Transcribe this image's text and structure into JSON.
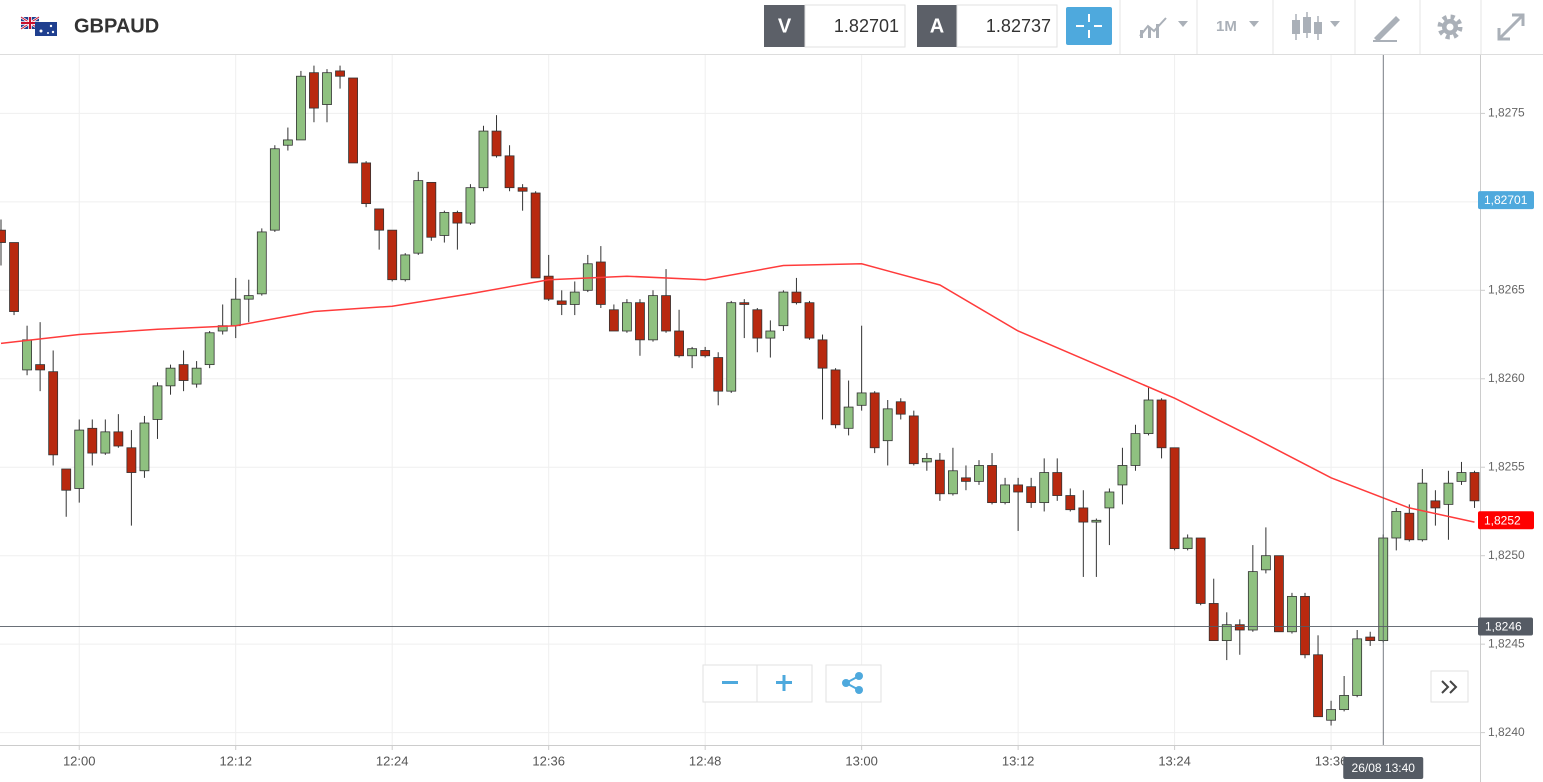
{
  "header": {
    "symbol": "GBPAUD",
    "sell_label": "V",
    "sell_price": "1.82701",
    "buy_label": "A",
    "buy_price": "1.82737",
    "timeframe": "1M"
  },
  "chart_data": {
    "type": "candlestick",
    "x": [
      "11:54",
      "11:55",
      "11:56",
      "11:57",
      "11:58",
      "11:59",
      "12:00",
      "12:01",
      "12:02",
      "12:03",
      "12:04",
      "12:05",
      "12:06",
      "12:07",
      "12:08",
      "12:09",
      "12:10",
      "12:11",
      "12:12",
      "12:13",
      "12:14",
      "12:15",
      "12:16",
      "12:17",
      "12:18",
      "12:19",
      "12:20",
      "12:21",
      "12:22",
      "12:23",
      "12:24",
      "12:25",
      "12:26",
      "12:27",
      "12:28",
      "12:29",
      "12:30",
      "12:31",
      "12:32",
      "12:33",
      "12:34",
      "12:35",
      "12:36",
      "12:37",
      "12:38",
      "12:39",
      "12:40",
      "12:41",
      "12:42",
      "12:43",
      "12:44",
      "12:45",
      "12:46",
      "12:47",
      "12:48",
      "12:49",
      "12:50",
      "12:51",
      "12:52",
      "12:53",
      "12:54",
      "12:55",
      "12:56",
      "12:57",
      "12:58",
      "12:59",
      "13:00",
      "13:01",
      "13:02",
      "13:03",
      "13:04",
      "13:05",
      "13:06",
      "13:07",
      "13:08",
      "13:09",
      "13:10",
      "13:11",
      "13:12",
      "13:13",
      "13:14",
      "13:15",
      "13:16",
      "13:17",
      "13:18",
      "13:19",
      "13:20",
      "13:21",
      "13:22",
      "13:23",
      "13:24",
      "13:25",
      "13:26",
      "13:27",
      "13:28",
      "13:29",
      "13:30",
      "13:31",
      "13:32",
      "13:33",
      "13:34",
      "13:35",
      "13:36",
      "13:37",
      "13:38",
      "13:39",
      "13:40",
      "13:41",
      "13:42",
      "13:43",
      "13:44",
      "13:45",
      "13:46",
      "13:47"
    ],
    "open": [
      1.82684,
      1.82677,
      1.82605,
      1.82608,
      1.82604,
      1.82549,
      1.82538,
      1.82572,
      1.82558,
      1.8257,
      1.82561,
      1.82548,
      1.82577,
      1.82596,
      1.82608,
      1.82597,
      1.82608,
      1.82627,
      1.8263,
      1.82645,
      1.82648,
      1.82684,
      1.82732,
      1.82735,
      1.82773,
      1.82755,
      1.82774,
      1.8277,
      1.82722,
      1.82696,
      1.82684,
      1.82656,
      1.82671,
      1.82711,
      1.82681,
      1.82694,
      1.82688,
      1.82708,
      1.8274,
      1.82726,
      1.82708,
      1.82705,
      1.82658,
      1.82644,
      1.82642,
      1.8265,
      1.82666,
      1.82639,
      1.82627,
      1.82643,
      1.82622,
      1.82647,
      1.82627,
      1.82613,
      1.82616,
      1.82612,
      1.82593,
      1.82643,
      1.82639,
      1.82623,
      1.8263,
      1.82649,
      1.82643,
      1.82622,
      1.82605,
      1.82572,
      1.82585,
      1.82592,
      1.82565,
      1.82587,
      1.82579,
      1.82553,
      1.82554,
      1.82535,
      1.82544,
      1.82542,
      1.82551,
      1.8253,
      1.8254,
      1.82539,
      1.8253,
      1.82547,
      1.82534,
      1.82527,
      1.82519,
      1.82527,
      1.8254,
      1.82551,
      1.82569,
      1.82588,
      1.82561,
      1.82504,
      1.8251,
      1.82473,
      1.82452,
      1.82461,
      1.82458,
      1.82492,
      1.825,
      1.82457,
      1.82477,
      1.82444,
      1.82407,
      1.82413,
      1.82421,
      1.82454,
      1.82452,
      1.8251,
      1.82524,
      1.82509,
      1.82531,
      1.82529,
      1.82542,
      1.82547
    ],
    "high": [
      1.8269,
      1.82677,
      1.8263,
      1.82632,
      1.82616,
      1.82549,
      1.82577,
      1.82577,
      1.82577,
      1.8258,
      1.82571,
      1.82579,
      1.82598,
      1.82608,
      1.82616,
      1.8261,
      1.82627,
      1.82642,
      1.82657,
      1.82656,
      1.82685,
      1.82732,
      1.82742,
      1.82774,
      1.82777,
      1.82775,
      1.82777,
      1.8277,
      1.82723,
      1.82696,
      1.82684,
      1.82671,
      1.82717,
      1.82711,
      1.82695,
      1.82695,
      1.8271,
      1.82743,
      1.82749,
      1.82732,
      1.8271,
      1.82706,
      1.8267,
      1.8265,
      1.82655,
      1.8267,
      1.82675,
      1.82642,
      1.82645,
      1.82645,
      1.8265,
      1.82662,
      1.82639,
      1.82618,
      1.82618,
      1.82615,
      1.82644,
      1.82645,
      1.8264,
      1.82633,
      1.8265,
      1.82657,
      1.82644,
      1.82625,
      1.82606,
      1.82599,
      1.8263,
      1.82593,
      1.82588,
      1.82589,
      1.82582,
      1.82558,
      1.82558,
      1.82561,
      1.82551,
      1.82554,
      1.82558,
      1.82544,
      1.82544,
      1.82544,
      1.82555,
      1.82555,
      1.82538,
      1.82537,
      1.82521,
      1.82538,
      1.82561,
      1.82574,
      1.82595,
      1.82589,
      1.82561,
      1.82512,
      1.8251,
      1.82487,
      1.82468,
      1.82464,
      1.82506,
      1.82516,
      1.825,
      1.82479,
      1.82479,
      1.82455,
      1.82418,
      1.82432,
      1.82458,
      1.82457,
      1.82512,
      1.82527,
      1.82529,
      1.82549,
      1.82537,
      1.82548,
      1.82553,
      1.82548
    ],
    "low": [
      1.82664,
      1.82636,
      1.82602,
      1.82593,
      1.82551,
      1.82522,
      1.8253,
      1.82551,
      1.82557,
      1.82561,
      1.82517,
      1.82544,
      1.82566,
      1.82591,
      1.82593,
      1.82595,
      1.82606,
      1.82625,
      1.82623,
      1.82632,
      1.82647,
      1.82683,
      1.82729,
      1.82735,
      1.82745,
      1.82745,
      1.82764,
      1.82722,
      1.82697,
      1.82673,
      1.82655,
      1.82655,
      1.8267,
      1.82678,
      1.82677,
      1.82673,
      1.82687,
      1.82706,
      1.82725,
      1.82706,
      1.82695,
      1.82657,
      1.82644,
      1.82636,
      1.82636,
      1.82649,
      1.8264,
      1.82627,
      1.82626,
      1.82613,
      1.82621,
      1.82626,
      1.82612,
      1.82606,
      1.82612,
      1.82585,
      1.82592,
      1.82623,
      1.82615,
      1.82612,
      1.82627,
      1.82642,
      1.82622,
      1.82577,
      1.82572,
      1.82568,
      1.82582,
      1.82558,
      1.82551,
      1.82577,
      1.82551,
      1.82548,
      1.82531,
      1.82534,
      1.82537,
      1.8254,
      1.82529,
      1.82529,
      1.82514,
      1.82527,
      1.82525,
      1.82531,
      1.82525,
      1.82488,
      1.82488,
      1.82506,
      1.82529,
      1.82548,
      1.82568,
      1.82555,
      1.82503,
      1.82503,
      1.82472,
      1.82452,
      1.82441,
      1.82444,
      1.82457,
      1.8249,
      1.82457,
      1.82456,
      1.82442,
      1.82409,
      1.82404,
      1.82412,
      1.8242,
      1.82449,
      1.82451,
      1.82503,
      1.82508,
      1.82508,
      1.82517,
      1.82509,
      1.8254,
      1.82527
    ],
    "close": [
      1.82677,
      1.82638,
      1.82622,
      1.82605,
      1.82557,
      1.82537,
      1.82571,
      1.82558,
      1.8257,
      1.82562,
      1.82547,
      1.82575,
      1.82596,
      1.82606,
      1.82599,
      1.82606,
      1.82626,
      1.8263,
      1.82645,
      1.82647,
      1.82683,
      1.8273,
      1.82735,
      1.82771,
      1.82753,
      1.82773,
      1.82771,
      1.82722,
      1.82699,
      1.82684,
      1.82656,
      1.8267,
      1.82712,
      1.8268,
      1.82694,
      1.82688,
      1.82708,
      1.8274,
      1.82726,
      1.82708,
      1.82706,
      1.82657,
      1.82645,
      1.82642,
      1.82649,
      1.82665,
      1.82642,
      1.82627,
      1.82643,
      1.82622,
      1.82647,
      1.82627,
      1.82613,
      1.82617,
      1.82613,
      1.82593,
      1.82643,
      1.82642,
      1.82623,
      1.82627,
      1.82649,
      1.82643,
      1.82623,
      1.82606,
      1.82574,
      1.82584,
      1.82592,
      1.82561,
      1.82583,
      1.8258,
      1.82552,
      1.82555,
      1.82535,
      1.82548,
      1.82542,
      1.82551,
      1.8253,
      1.8254,
      1.82536,
      1.8253,
      1.82547,
      1.82534,
      1.82526,
      1.82519,
      1.8252,
      1.82536,
      1.82551,
      1.82569,
      1.82588,
      1.82561,
      1.82504,
      1.8251,
      1.82473,
      1.82452,
      1.82461,
      1.82458,
      1.82491,
      1.825,
      1.82457,
      1.82477,
      1.82444,
      1.82409,
      1.82413,
      1.82421,
      1.82453,
      1.82452,
      1.8251,
      1.82525,
      1.82509,
      1.82541,
      1.82527,
      1.82541,
      1.82547,
      1.82531
    ],
    "up_color": "#8fc180",
    "down_color": "#b8290f",
    "ylim": [
      1.82393,
      1.82783
    ],
    "yticks": [
      {
        "value": 1.824,
        "label": "1,8240"
      },
      {
        "value": 1.8245,
        "label": "1,8245"
      },
      {
        "value": 1.825,
        "label": "1,8250"
      },
      {
        "value": 1.8255,
        "label": "1,8255"
      },
      {
        "value": 1.826,
        "label": "1,8260"
      },
      {
        "value": 1.8265,
        "label": "1,8265"
      },
      {
        "value": 1.827,
        "label": "1,8270"
      },
      {
        "value": 1.8275,
        "label": "1,8275"
      }
    ],
    "xticks": [
      "12:00",
      "12:12",
      "12:24",
      "12:36",
      "12:48",
      "13:00",
      "13:12",
      "13:24",
      "13:36"
    ],
    "grid": true,
    "moving_average": {
      "color": "#ff3b3b",
      "x": [
        "11:54",
        "12:00",
        "12:06",
        "12:12",
        "12:18",
        "12:24",
        "12:30",
        "12:36",
        "12:42",
        "12:48",
        "12:54",
        "13:00",
        "13:06",
        "13:12",
        "13:18",
        "13:24",
        "13:30",
        "13:36",
        "13:42",
        "13:47"
      ],
      "values": [
        1.8262,
        1.82625,
        1.82628,
        1.8263,
        1.82638,
        1.82641,
        1.82648,
        1.82656,
        1.82658,
        1.82656,
        1.82664,
        1.82665,
        1.82653,
        1.82627,
        1.82608,
        1.82589,
        1.82567,
        1.82544,
        1.82527,
        1.82519
      ]
    },
    "price_markers": [
      {
        "value": 1.82701,
        "label": "1,82701",
        "color": "#4ea9dd"
      },
      {
        "value": 1.8252,
        "label": "1,8252",
        "color": "#ff0000"
      }
    ],
    "crosshair": {
      "x": "13:40",
      "x_label": "26/08 13:40",
      "y": 1.8246,
      "y_label": "1,8246",
      "color": "#555b64"
    }
  }
}
